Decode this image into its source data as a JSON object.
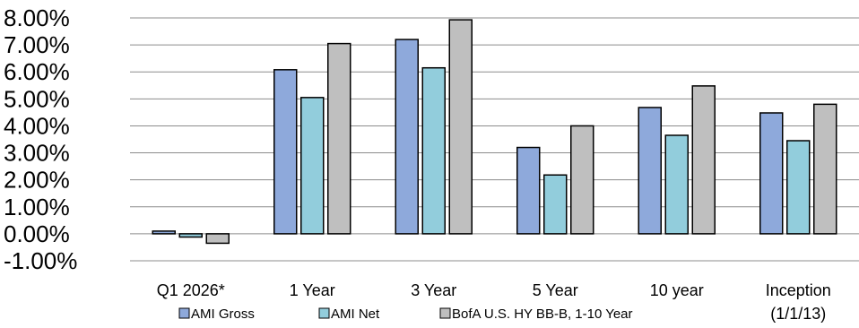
{
  "chart_data": {
    "type": "bar",
    "categories": [
      "Q1 2026*",
      "1 Year",
      "3 Year",
      "5 Year",
      "10 year",
      "Inception\n(1/1/13)"
    ],
    "series": [
      {
        "name": "AMI Gross",
        "color": "#8EA9DB",
        "values": [
          0.1,
          6.08,
          7.2,
          3.2,
          4.68,
          4.48
        ]
      },
      {
        "name": "AMI Net",
        "color": "#92CDDC",
        "values": [
          -0.12,
          5.05,
          6.15,
          2.18,
          3.65,
          3.45
        ]
      },
      {
        "name": "BofA U.S. HY BB-B, 1-10 Year",
        "color": "#BFBFBF",
        "values": [
          -0.35,
          7.05,
          7.93,
          4.0,
          5.48,
          4.8
        ]
      }
    ],
    "ytick_labels": [
      "8.00%",
      "7.00%",
      "6.00%",
      "5.00%",
      "4.00%",
      "3.00%",
      "2.00%",
      "1.00%",
      "0.00%",
      "-1.00%"
    ],
    "ylim": [
      -1,
      8
    ],
    "grid": true,
    "legend_placement": "bottom",
    "title": "",
    "xlabel": "",
    "ylabel": ""
  }
}
